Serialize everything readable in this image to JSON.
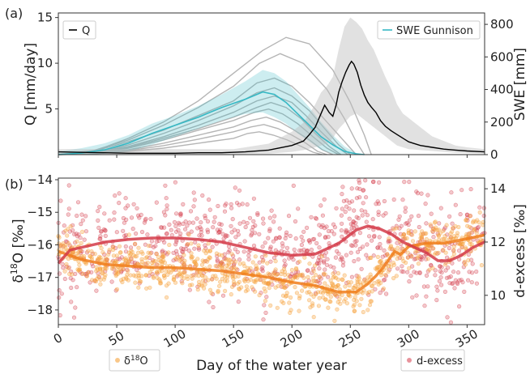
{
  "chart_data": [
    {
      "panel_label": "(a)",
      "type": "line",
      "xlim": [
        0,
        365
      ],
      "ylim_left": [
        0,
        15.5
      ],
      "ylim_right": [
        0,
        870
      ],
      "ylabel_left": "Q [mm/day]",
      "ylabel_right": "SWE [mm]",
      "yticks_left": [
        5,
        10,
        15
      ],
      "yticks_right": [
        0,
        200,
        400,
        600,
        800
      ],
      "legend_left": {
        "label": "Q",
        "color": "#000000",
        "position": "upper-left"
      },
      "legend_right": {
        "label": "SWE Gunnison",
        "color": "#36b8c4",
        "position": "upper-right"
      },
      "q_mean": {
        "color": "#000000",
        "x": [
          0,
          20,
          40,
          60,
          80,
          100,
          120,
          140,
          160,
          180,
          200,
          210,
          215,
          220,
          225,
          228,
          232,
          235,
          238,
          240,
          243,
          246,
          249,
          251,
          253,
          256,
          259,
          262,
          265,
          268,
          272,
          276,
          280,
          285,
          290,
          295,
          300,
          310,
          320,
          330,
          340,
          350,
          365
        ],
        "y": [
          0.3,
          0.25,
          0.2,
          0.15,
          0.15,
          0.15,
          0.2,
          0.2,
          0.3,
          0.5,
          1.0,
          1.5,
          2.2,
          3.0,
          4.5,
          5.4,
          4.6,
          4.2,
          5.5,
          6.8,
          8.0,
          9.0,
          9.8,
          10.2,
          9.9,
          9.0,
          7.6,
          6.5,
          5.7,
          5.2,
          4.6,
          3.7,
          3.1,
          2.6,
          2.2,
          1.8,
          1.4,
          1.0,
          0.8,
          0.6,
          0.5,
          0.4,
          0.3
        ]
      },
      "q_range": {
        "color": "#d9d9d9",
        "x": [
          0,
          150,
          180,
          200,
          210,
          220,
          225,
          230,
          235,
          240,
          245,
          250,
          255,
          260,
          265,
          270,
          275,
          280,
          285,
          290,
          295,
          300,
          310,
          320,
          330,
          340,
          350,
          365
        ],
        "upper": [
          0.6,
          0.6,
          1.2,
          2.5,
          3.5,
          5.5,
          6.8,
          7.5,
          8.5,
          11.5,
          14.0,
          15.0,
          14.5,
          13.8,
          12.5,
          11.5,
          10.0,
          8.5,
          7.2,
          5.5,
          4.5,
          4.0,
          3.0,
          2.0,
          1.5,
          1.0,
          0.8,
          0.6
        ],
        "lower": [
          0.05,
          0.05,
          0.1,
          0.3,
          0.5,
          0.8,
          1.0,
          1.2,
          1.8,
          2.8,
          3.5,
          4.2,
          4.5,
          4.0,
          3.5,
          3.0,
          2.5,
          2.0,
          1.5,
          1.0,
          0.8,
          0.6,
          0.5,
          0.4,
          0.3,
          0.2,
          0.15,
          0.1
        ]
      },
      "swe_gunnison": {
        "color": "#36b8c4",
        "x": [
          0,
          20,
          40,
          60,
          80,
          100,
          120,
          140,
          160,
          175,
          185,
          195,
          205,
          215,
          225,
          235,
          245,
          255,
          262
        ],
        "y": [
          0,
          10,
          30,
          70,
          130,
          180,
          230,
          290,
          340,
          385,
          370,
          320,
          250,
          180,
          110,
          60,
          20,
          5,
          0
        ],
        "band_upper": [
          20,
          40,
          70,
          120,
          190,
          240,
          300,
          370,
          450,
          520,
          500,
          450,
          370,
          290,
          200,
          120,
          50,
          10,
          0
        ],
        "band_lower": [
          0,
          0,
          5,
          20,
          60,
          110,
          160,
          210,
          250,
          260,
          230,
          190,
          130,
          80,
          30,
          5,
          0,
          0,
          0
        ]
      },
      "swe_other_sites": {
        "color": "#b5b5b5",
        "series": [
          {
            "x": [
              0,
              30,
              60,
              90,
              120,
              150,
              175,
              195,
              215,
              235,
              250,
              262,
              268
            ],
            "y": [
              0,
              20,
              100,
              200,
              330,
              500,
              640,
              720,
              680,
              520,
              320,
              120,
              0
            ]
          },
          {
            "x": [
              0,
              30,
              60,
              90,
              120,
              150,
              172,
              190,
              210,
              230,
              245,
              255,
              262
            ],
            "y": [
              0,
              25,
              90,
              180,
              290,
              420,
              560,
              620,
              560,
              400,
              220,
              80,
              0
            ]
          },
          {
            "x": [
              0,
              30,
              60,
              90,
              120,
              150,
              170,
              185,
              200,
              215,
              230,
              245,
              255
            ],
            "y": [
              0,
              20,
              80,
              150,
              240,
              330,
              440,
              470,
              420,
              320,
              200,
              80,
              0
            ]
          },
          {
            "x": [
              0,
              30,
              60,
              90,
              120,
              150,
              170,
              185,
              200,
              215,
              228,
              240,
              250
            ],
            "y": [
              0,
              15,
              60,
              130,
              210,
              300,
              380,
              410,
              360,
              270,
              160,
              60,
              0
            ]
          },
          {
            "x": [
              0,
              30,
              60,
              90,
              120,
              150,
              170,
              185,
              200,
              212,
              225,
              238,
              248
            ],
            "y": [
              0,
              15,
              50,
              110,
              180,
              260,
              330,
              360,
              320,
              240,
              140,
              50,
              0
            ]
          },
          {
            "x": [
              0,
              30,
              60,
              90,
              120,
              150,
              170,
              182,
              195,
              208,
              220,
              232,
              242
            ],
            "y": [
              0,
              10,
              45,
              100,
              160,
              230,
              290,
              320,
              290,
              220,
              130,
              50,
              0
            ]
          },
          {
            "x": [
              0,
              30,
              60,
              90,
              120,
              150,
              168,
              180,
              192,
              205,
              218,
              230,
              240
            ],
            "y": [
              0,
              10,
              40,
              90,
              150,
              210,
              260,
              280,
              250,
              190,
              110,
              40,
              0
            ]
          },
          {
            "x": [
              0,
              30,
              60,
              90,
              120,
              150,
              165,
              178,
              190,
              202,
              215,
              226,
              235
            ],
            "y": [
              0,
              8,
              30,
              70,
              120,
              170,
              210,
              230,
              200,
              150,
              90,
              30,
              0
            ]
          },
          {
            "x": [
              0,
              30,
              60,
              90,
              120,
              150,
              165,
              176,
              188,
              200,
              212,
              222,
              230
            ],
            "y": [
              0,
              5,
              25,
              55,
              95,
              140,
              170,
              185,
              160,
              120,
              70,
              20,
              0
            ]
          },
          {
            "x": [
              0,
              30,
              60,
              90,
              120,
              150,
              162,
              172,
              184,
              196,
              208,
              218,
              226
            ],
            "y": [
              0,
              5,
              20,
              40,
              70,
              100,
              130,
              140,
              120,
              90,
              50,
              15,
              0
            ]
          }
        ]
      }
    },
    {
      "panel_label": "(b)",
      "type": "scatter",
      "xlim": [
        0,
        365
      ],
      "ylim_left": [
        -18.45,
        -13.95
      ],
      "ylim_right": [
        8.9,
        14.4
      ],
      "xlabel": "Day of the water year",
      "xticks": [
        0,
        50,
        100,
        150,
        200,
        250,
        300,
        350
      ],
      "yticks_left": [
        -18,
        -17,
        -16,
        -15,
        -14
      ],
      "yticks_right": [
        10,
        12,
        14
      ],
      "ylabel_left_main": "δ",
      "ylabel_left_sup": "18",
      "ylabel_left_rest": "O [‰]",
      "ylabel_right": "d-excess [‰]",
      "legend_left": {
        "label_main": "δ",
        "label_sup": "18",
        "label_rest": "O",
        "color": "#f5a13a",
        "position": "below-left"
      },
      "legend_right": {
        "label": "d-excess",
        "color": "#d94b5a",
        "position": "below-right"
      },
      "d18o_trend": {
        "color": "#f07e1c",
        "x": [
          0,
          20,
          40,
          60,
          80,
          100,
          120,
          140,
          160,
          180,
          200,
          220,
          240,
          255,
          265,
          272,
          278,
          283,
          288,
          293,
          300,
          315,
          330,
          345,
          365
        ],
        "y": [
          -16.2,
          -16.45,
          -16.6,
          -16.65,
          -16.7,
          -16.7,
          -16.75,
          -16.8,
          -16.9,
          -17.0,
          -17.15,
          -17.25,
          -17.45,
          -17.45,
          -17.2,
          -16.95,
          -16.7,
          -16.45,
          -16.2,
          -16.3,
          -16.05,
          -15.95,
          -15.95,
          -15.85,
          -15.7
        ]
      },
      "dexcess_trend": {
        "color": "#d43a48",
        "x": [
          0,
          10,
          20,
          40,
          60,
          80,
          100,
          120,
          140,
          160,
          180,
          200,
          220,
          240,
          255,
          265,
          275,
          285,
          295,
          305,
          315,
          325,
          335,
          345,
          355,
          365
        ],
        "y": [
          11.2,
          11.7,
          11.8,
          12.0,
          12.1,
          12.15,
          12.15,
          12.1,
          12.0,
          11.8,
          11.6,
          11.5,
          11.55,
          11.95,
          12.45,
          12.6,
          12.5,
          12.3,
          12.0,
          11.8,
          11.6,
          11.3,
          11.3,
          11.5,
          11.8,
          12.0
        ]
      }
    }
  ]
}
